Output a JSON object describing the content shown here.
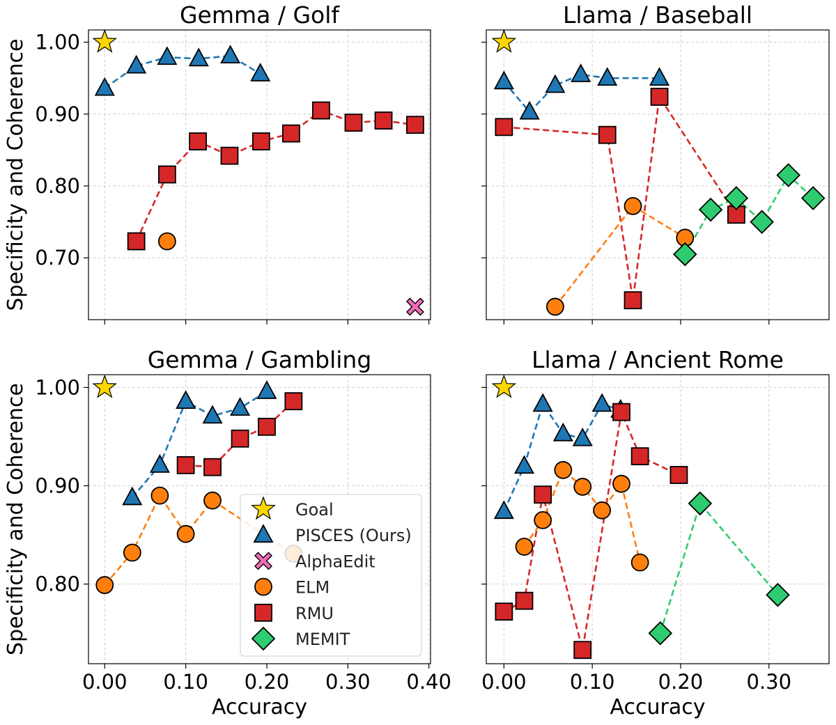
{
  "chart_data": [
    {
      "type": "scatter",
      "title": "Gemma / Golf",
      "xlabel": "",
      "ylabel": "Specificity and Coherence",
      "xlim": [
        -0.02,
        0.402
      ],
      "ylim": [
        0.614,
        1.017
      ],
      "xticks": [
        0.0,
        0.1,
        0.2,
        0.3,
        0.4
      ],
      "yticks": [
        0.7,
        0.8,
        0.9,
        1.0
      ],
      "show_xticklabels": false,
      "show_yticklabels": true,
      "grid": true,
      "series": [
        {
          "name": "Goal",
          "points": [
            [
              0.0,
              1.0
            ]
          ]
        },
        {
          "name": "PISCES (Ours)",
          "points": [
            [
              0.0,
              0.936
            ],
            [
              0.039,
              0.967
            ],
            [
              0.077,
              0.979
            ],
            [
              0.116,
              0.977
            ],
            [
              0.155,
              0.981
            ],
            [
              0.192,
              0.956
            ]
          ]
        },
        {
          "name": "RMU",
          "points": [
            [
              0.039,
              0.723
            ],
            [
              0.077,
              0.816
            ],
            [
              0.115,
              0.862
            ],
            [
              0.154,
              0.842
            ],
            [
              0.193,
              0.862
            ],
            [
              0.23,
              0.873
            ],
            [
              0.267,
              0.905
            ],
            [
              0.307,
              0.888
            ],
            [
              0.344,
              0.891
            ],
            [
              0.383,
              0.885
            ]
          ]
        },
        {
          "name": "ELM",
          "points": [
            [
              0.077,
              0.723
            ]
          ]
        },
        {
          "name": "AlphaEdit",
          "points": [
            [
              0.383,
              0.632
            ]
          ]
        }
      ]
    },
    {
      "type": "scatter",
      "title": "Llama / Baseball",
      "xlabel": "",
      "ylabel": "",
      "xlim": [
        -0.02,
        0.368
      ],
      "ylim": [
        0.614,
        1.017
      ],
      "xticks": [
        0.0,
        0.1,
        0.2,
        0.3
      ],
      "yticks": [
        0.7,
        0.8,
        0.9,
        1.0
      ],
      "show_xticklabels": false,
      "show_yticklabels": false,
      "grid": true,
      "series": [
        {
          "name": "Goal",
          "points": [
            [
              0.0,
              1.0
            ]
          ]
        },
        {
          "name": "PISCES (Ours)",
          "points": [
            [
              0.0,
              0.945
            ],
            [
              0.029,
              0.903
            ],
            [
              0.058,
              0.94
            ],
            [
              0.087,
              0.955
            ],
            [
              0.117,
              0.95
            ],
            [
              0.176,
              0.95
            ]
          ]
        },
        {
          "name": "RMU",
          "points": [
            [
              0.0,
              0.882
            ],
            [
              0.117,
              0.871
            ],
            [
              0.146,
              0.641
            ],
            [
              0.176,
              0.924
            ],
            [
              0.263,
              0.76
            ]
          ]
        },
        {
          "name": "ELM",
          "points": [
            [
              0.058,
              0.632
            ],
            [
              0.146,
              0.772
            ],
            [
              0.205,
              0.728
            ]
          ]
        },
        {
          "name": "MEMIT",
          "points": [
            [
              0.205,
              0.705
            ],
            [
              0.234,
              0.767
            ],
            [
              0.263,
              0.783
            ],
            [
              0.292,
              0.75
            ],
            [
              0.322,
              0.815
            ],
            [
              0.35,
              0.783
            ]
          ]
        }
      ]
    },
    {
      "type": "scatter",
      "title": "Gemma / Gambling",
      "xlabel": "Accuracy",
      "ylabel": "Specificity and Coherence",
      "xlim": [
        -0.02,
        0.402
      ],
      "ylim": [
        0.719,
        1.013
      ],
      "xticks": [
        0.0,
        0.1,
        0.2,
        0.3,
        0.4
      ],
      "yticks": [
        0.8,
        0.9,
        1.0
      ],
      "show_xticklabels": true,
      "show_yticklabels": true,
      "grid": true,
      "legend": "lower-right",
      "series": [
        {
          "name": "Goal",
          "points": [
            [
              0.0,
              1.0
            ]
          ]
        },
        {
          "name": "PISCES (Ours)",
          "points": [
            [
              0.034,
              0.888
            ],
            [
              0.068,
              0.921
            ],
            [
              0.1,
              0.986
            ],
            [
              0.133,
              0.971
            ],
            [
              0.167,
              0.979
            ],
            [
              0.2,
              0.996
            ]
          ]
        },
        {
          "name": "RMU",
          "points": [
            [
              0.1,
              0.921
            ],
            [
              0.133,
              0.919
            ],
            [
              0.167,
              0.948
            ],
            [
              0.2,
              0.96
            ],
            [
              0.233,
              0.986
            ]
          ]
        },
        {
          "name": "ELM",
          "points": [
            [
              0.0,
              0.799
            ],
            [
              0.034,
              0.832
            ],
            [
              0.068,
              0.89
            ],
            [
              0.1,
              0.851
            ],
            [
              0.133,
              0.885
            ],
            [
              0.233,
              0.831
            ]
          ]
        }
      ]
    },
    {
      "type": "scatter",
      "title": "Llama / Ancient Rome",
      "xlabel": "Accuracy",
      "ylabel": "",
      "xlim": [
        -0.02,
        0.368
      ],
      "ylim": [
        0.719,
        1.013
      ],
      "xticks": [
        0.0,
        0.1,
        0.2,
        0.3
      ],
      "yticks": [
        0.8,
        0.9,
        1.0
      ],
      "show_xticklabels": true,
      "show_yticklabels": false,
      "grid": true,
      "series": [
        {
          "name": "Goal",
          "points": [
            [
              0.0,
              1.0
            ]
          ]
        },
        {
          "name": "PISCES (Ours)",
          "points": [
            [
              0.0,
              0.874
            ],
            [
              0.023,
              0.92
            ],
            [
              0.044,
              0.983
            ],
            [
              0.067,
              0.953
            ],
            [
              0.089,
              0.948
            ],
            [
              0.111,
              0.983
            ],
            [
              0.132,
              0.977
            ]
          ]
        },
        {
          "name": "RMU",
          "points": [
            [
              0.0,
              0.772
            ],
            [
              0.023,
              0.783
            ],
            [
              0.044,
              0.891
            ],
            [
              0.089,
              0.733
            ],
            [
              0.133,
              0.975
            ],
            [
              0.154,
              0.93
            ],
            [
              0.198,
              0.911
            ]
          ]
        },
        {
          "name": "ELM",
          "points": [
            [
              0.023,
              0.838
            ],
            [
              0.044,
              0.865
            ],
            [
              0.067,
              0.916
            ],
            [
              0.089,
              0.899
            ],
            [
              0.111,
              0.875
            ],
            [
              0.133,
              0.902
            ],
            [
              0.154,
              0.822
            ]
          ]
        },
        {
          "name": "MEMIT",
          "points": [
            [
              0.177,
              0.75
            ],
            [
              0.222,
              0.882
            ],
            [
              0.31,
              0.789
            ]
          ]
        }
      ]
    }
  ],
  "legend": {
    "entries": [
      {
        "name": "Goal",
        "label": "Goal"
      },
      {
        "name": "PISCES (Ours)",
        "label": "PISCES (Ours)"
      },
      {
        "name": "AlphaEdit",
        "label": "AlphaEdit"
      },
      {
        "name": "ELM",
        "label": "ELM"
      },
      {
        "name": "RMU",
        "label": "RMU"
      },
      {
        "name": "MEMIT",
        "label": "MEMIT"
      }
    ]
  },
  "styles": {
    "Goal": {
      "color": "#ffd700",
      "marker": "star",
      "line": false
    },
    "PISCES (Ours)": {
      "color": "#1f77b4",
      "marker": "triangle",
      "line": true
    },
    "AlphaEdit": {
      "color": "#f06bb5",
      "marker": "x",
      "line": false
    },
    "ELM": {
      "color": "#ff7f0e",
      "marker": "circle",
      "line": true
    },
    "RMU": {
      "color": "#d62728",
      "marker": "square",
      "line": true
    },
    "MEMIT": {
      "color": "#2ecc71",
      "marker": "diamond",
      "line": true
    }
  }
}
